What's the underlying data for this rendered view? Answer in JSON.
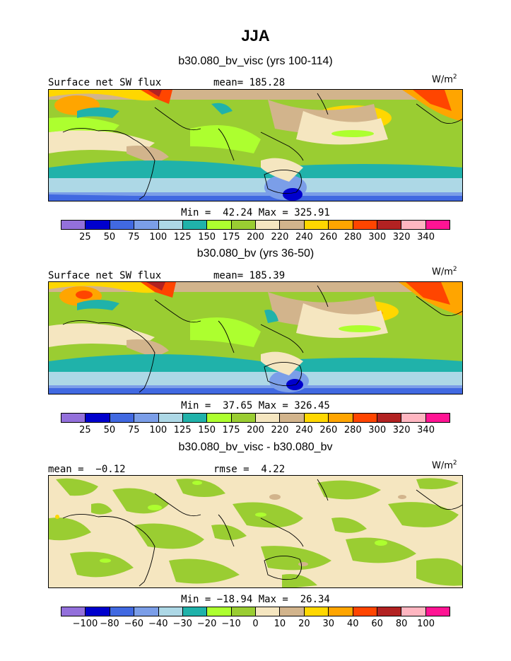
{
  "page": {
    "title": "JJA"
  },
  "colors": {
    "main_scale": [
      "#9370DB",
      "#0000CD",
      "#4169E1",
      "#7B9EE8",
      "#ADD8E6",
      "#20B2AA",
      "#ADFF2F",
      "#9ACD32",
      "#F5E6C0",
      "#D2B48C",
      "#FFD700",
      "#FFA500",
      "#FF4500",
      "#B22222",
      "#FFB6C1",
      "#FF1493"
    ],
    "diff_scale": [
      "#9370DB",
      "#0000CD",
      "#4169E1",
      "#7B9EE8",
      "#ADD8E6",
      "#20B2AA",
      "#ADFF2F",
      "#9ACD32",
      "#F5E6C0",
      "#D2B48C",
      "#FFD700",
      "#FFA500",
      "#FF4500",
      "#B22222",
      "#FFB6C1",
      "#FF1493"
    ]
  },
  "panels": [
    {
      "subtitle": "b30.080_bv_visc (yrs 100-114)",
      "left_label": "Surface net SW flux",
      "center_label": "mean= 185.28",
      "units": "W/m",
      "units_exp": "2",
      "minmax": "Min =  42.24 Max = 325.91",
      "ticks": [
        "25",
        "50",
        "75",
        "100",
        "125",
        "150",
        "175",
        "200",
        "220",
        "240",
        "260",
        "280",
        "300",
        "320",
        "340"
      ]
    },
    {
      "subtitle": "b30.080_bv (yrs 36-50)",
      "left_label": "Surface net SW flux",
      "center_label": "mean= 185.39",
      "units": "W/m",
      "units_exp": "2",
      "minmax": "Min =  37.65 Max = 326.45",
      "ticks": [
        "25",
        "50",
        "75",
        "100",
        "125",
        "150",
        "175",
        "200",
        "220",
        "240",
        "260",
        "280",
        "300",
        "320",
        "340"
      ]
    },
    {
      "subtitle": "b30.080_bv_visc - b30.080_bv",
      "left_label": "mean =  −0.12",
      "center_label": "rmse =  4.22",
      "units": "W/m",
      "units_exp": "2",
      "minmax": "Min = −18.94 Max =  26.34",
      "ticks": [
        "−100",
        "−80",
        "−60",
        "−40",
        "−30",
        "−20",
        "−10",
        "0",
        "10",
        "20",
        "30",
        "40",
        "60",
        "80",
        "100"
      ]
    }
  ]
}
